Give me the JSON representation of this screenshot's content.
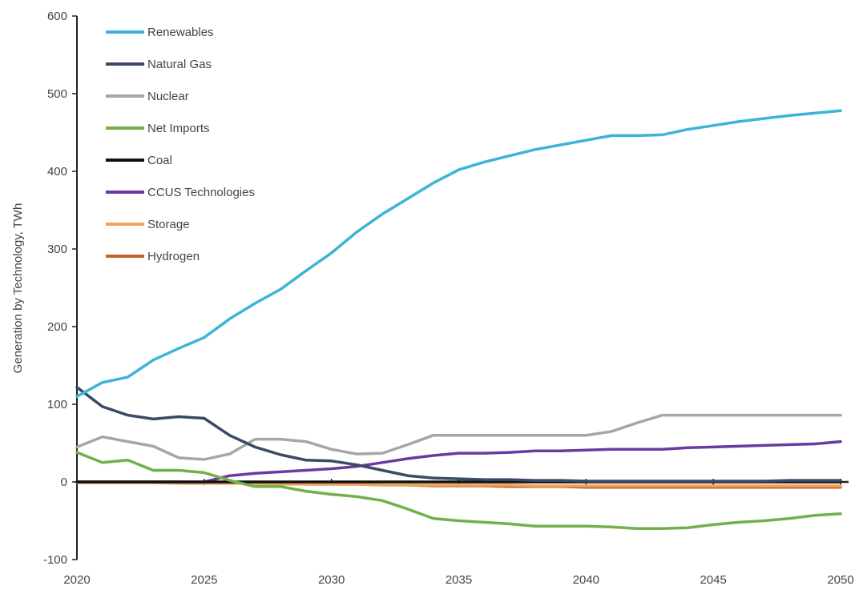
{
  "chart_data": {
    "type": "line",
    "title": "",
    "xlabel": "",
    "ylabel": "Generation by Technology, TWh",
    "x": [
      2020,
      2021,
      2022,
      2023,
      2024,
      2025,
      2026,
      2027,
      2028,
      2029,
      2030,
      2031,
      2032,
      2033,
      2034,
      2035,
      2036,
      2037,
      2038,
      2039,
      2040,
      2041,
      2042,
      2043,
      2044,
      2045,
      2046,
      2047,
      2048,
      2049,
      2050
    ],
    "xlim": [
      2020,
      2050
    ],
    "ylim": [
      -100,
      600
    ],
    "x_ticks": [
      "2020",
      "2025",
      "2030",
      "2035",
      "2040",
      "2045",
      "2050"
    ],
    "y_ticks": [
      "-100",
      "0",
      "100",
      "200",
      "300",
      "400",
      "500",
      "600"
    ],
    "grid": false,
    "legend_position": "top-left",
    "series": [
      {
        "name": "Renewables",
        "color": "#3cb4d8",
        "values": [
          110,
          128,
          135,
          157,
          172,
          186,
          210,
          230,
          248,
          272,
          295,
          322,
          345,
          365,
          385,
          402,
          412,
          420,
          428,
          434,
          440,
          446,
          446,
          447,
          454,
          459,
          464,
          468,
          472,
          475,
          478
        ]
      },
      {
        "name": "Natural Gas",
        "color": "#3b4a66",
        "values": [
          122,
          97,
          86,
          81,
          84,
          82,
          60,
          45,
          35,
          28,
          27,
          22,
          15,
          8,
          5,
          4,
          3,
          3,
          2,
          2,
          1,
          1,
          1,
          1,
          1,
          1,
          1,
          1,
          2,
          2,
          2
        ]
      },
      {
        "name": "Nuclear",
        "color": "#a6a6a6",
        "values": [
          45,
          58,
          52,
          46,
          31,
          29,
          36,
          55,
          55,
          52,
          42,
          36,
          37,
          48,
          60,
          60,
          60,
          60,
          60,
          60,
          60,
          65,
          76,
          86,
          86,
          86,
          86,
          86,
          86,
          86,
          86
        ]
      },
      {
        "name": "Net Imports",
        "color": "#71b04c",
        "values": [
          38,
          25,
          28,
          15,
          15,
          12,
          2,
          -6,
          -6,
          -12,
          -16,
          -19,
          -24,
          -35,
          -47,
          -50,
          -52,
          -54,
          -57,
          -57,
          -57,
          -58,
          -60,
          -60,
          -59,
          -55,
          -52,
          -50,
          -47,
          -43,
          -41
        ]
      },
      {
        "name": "Coal",
        "color": "#111111",
        "values": [
          0,
          0,
          0,
          0,
          0,
          0,
          0,
          0,
          0,
          0,
          0,
          0,
          0,
          0,
          0,
          0,
          0,
          0,
          0,
          0,
          0,
          0,
          0,
          0,
          0,
          0,
          0,
          0,
          0,
          0,
          0
        ]
      },
      {
        "name": "CCUS Technologies",
        "color": "#6b3aa0",
        "values": [
          0,
          0,
          0,
          0,
          0,
          0,
          8,
          11,
          13,
          15,
          17,
          20,
          25,
          30,
          34,
          37,
          37,
          38,
          40,
          40,
          41,
          42,
          42,
          42,
          44,
          45,
          46,
          47,
          48,
          49,
          52
        ]
      },
      {
        "name": "Storage",
        "color": "#f0a45a",
        "values": [
          -1,
          -1,
          -1,
          -1,
          -2,
          -2,
          -2,
          -2,
          -3,
          -3,
          -3,
          -3,
          -4,
          -4,
          -4,
          -4,
          -4,
          -4,
          -5,
          -5,
          -5,
          -5,
          -5,
          -5,
          -5,
          -5,
          -5,
          -5,
          -5,
          -5,
          -5
        ]
      },
      {
        "name": "Hydrogen",
        "color": "#c8622a",
        "values": [
          0,
          0,
          0,
          0,
          0,
          -1,
          -1,
          -2,
          -2,
          -3,
          -3,
          -3,
          -4,
          -4,
          -5,
          -5,
          -5,
          -6,
          -6,
          -6,
          -7,
          -7,
          -7,
          -7,
          -7,
          -7,
          -7,
          -7,
          -7,
          -7,
          -7
        ]
      }
    ]
  }
}
